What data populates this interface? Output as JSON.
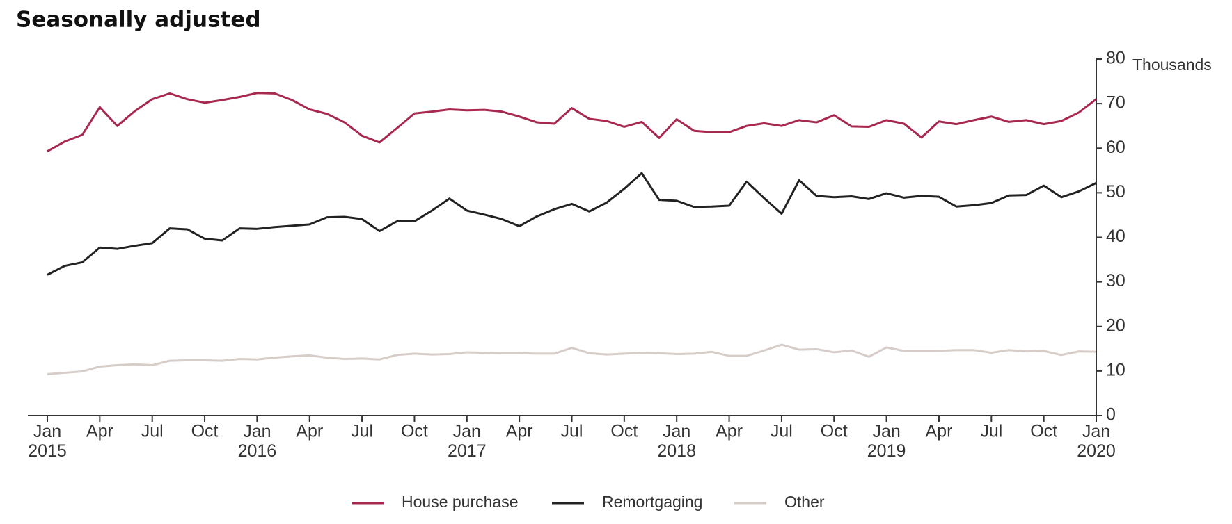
{
  "chart_data": {
    "type": "line",
    "title": "Seasonally adjusted",
    "y_label": "Thousands",
    "categories": [
      "Jan 2015",
      null,
      null,
      "Apr",
      null,
      null,
      "Jul",
      null,
      null,
      "Oct",
      null,
      null,
      "Jan 2016",
      null,
      null,
      "Apr",
      null,
      null,
      "Jul",
      null,
      null,
      "Oct",
      null,
      null,
      "Jan 2017",
      null,
      null,
      "Apr",
      null,
      null,
      "Jul",
      null,
      null,
      "Oct",
      null,
      null,
      "Jan 2018",
      null,
      null,
      "Apr",
      null,
      null,
      "Jul",
      null,
      null,
      "Oct",
      null,
      null,
      "Jan 2019",
      null,
      null,
      "Apr",
      null,
      null,
      "Jul",
      null,
      null,
      "Oct",
      null,
      null,
      "Jan 2020"
    ],
    "series": [
      {
        "name": "House purchase",
        "color": "#a8294f",
        "values": [
          59.3,
          61.5,
          63,
          69.2,
          65,
          68.3,
          71,
          72.3,
          71,
          70.2,
          70.8,
          71.5,
          72.4,
          72.3,
          70.8,
          68.7,
          67.7,
          65.8,
          62.8,
          61.3,
          64.5,
          67.8,
          68.2,
          68.7,
          68.5,
          68.6,
          68.2,
          67.1,
          65.8,
          65.5,
          69,
          66.6,
          66.1,
          64.8,
          65.9,
          62.3,
          66.5,
          63.9,
          63.6,
          63.6,
          65,
          65.6,
          65,
          66.3,
          65.8,
          67.4,
          64.9,
          64.8,
          66.3,
          65.5,
          62.4,
          66,
          65.4,
          66.3,
          67.1,
          65.9,
          66.3,
          65.4,
          66.1,
          68,
          71
        ]
      },
      {
        "name": "Remortgaging",
        "color": "#222222",
        "values": [
          31.6,
          33.6,
          34.4,
          37.7,
          37.4,
          38.1,
          38.7,
          42,
          41.8,
          39.7,
          39.3,
          42,
          41.9,
          42.3,
          42.6,
          42.9,
          44.5,
          44.6,
          44.1,
          41.4,
          43.6,
          43.6,
          46,
          48.7,
          46,
          45.1,
          44.1,
          42.5,
          44.7,
          46.3,
          47.5,
          45.8,
          47.8,
          50.9,
          54.4,
          48.4,
          48.2,
          46.8,
          46.9,
          47.1,
          52.5,
          48.8,
          45.3,
          52.8,
          49.3,
          49,
          49.2,
          48.6,
          49.9,
          48.9,
          49.3,
          49.1,
          46.9,
          47.2,
          47.7,
          49.4,
          49.5,
          51.6,
          49,
          50.3,
          52.2
        ]
      },
      {
        "name": "Other",
        "color": "#d6cdc8",
        "values": [
          9.3,
          9.6,
          9.9,
          11,
          11.3,
          11.5,
          11.3,
          12.3,
          12.4,
          12.4,
          12.3,
          12.7,
          12.6,
          13,
          13.3,
          13.5,
          13,
          12.7,
          12.8,
          12.6,
          13.6,
          13.9,
          13.7,
          13.8,
          14.2,
          14.1,
          14,
          14,
          13.9,
          13.9,
          15.2,
          14,
          13.7,
          13.9,
          14.1,
          14,
          13.8,
          13.9,
          14.3,
          13.4,
          13.4,
          14.6,
          15.9,
          14.8,
          14.9,
          14.2,
          14.6,
          13.2,
          15.3,
          14.5,
          14.5,
          14.5,
          14.7,
          14.7,
          14.1,
          14.7,
          14.4,
          14.5,
          13.6,
          14.4,
          14.3
        ]
      }
    ],
    "ylim": [
      0,
      80
    ],
    "yticks": [
      0,
      10,
      20,
      30,
      40,
      50,
      60,
      70,
      80
    ],
    "y_axis_side": "right",
    "grid": false,
    "legend": "bottom"
  }
}
